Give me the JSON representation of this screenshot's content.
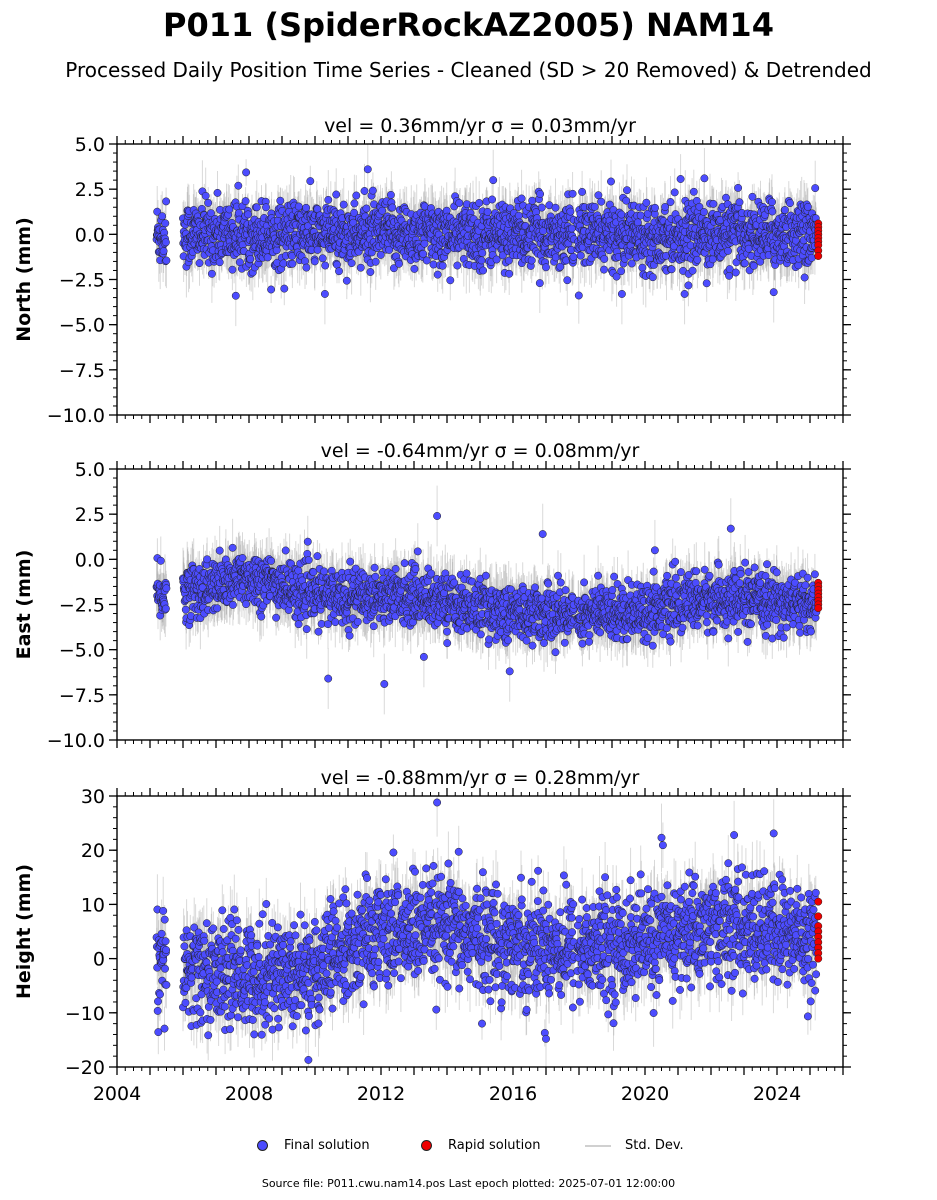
{
  "title": "P011 (SpiderRockAZ2005) NAM14",
  "subtitle": "Processed Daily Position Time Series - Cleaned (SD > 20 Removed) & Detrended",
  "legend": {
    "final": "Final solution",
    "rapid": "Rapid solution",
    "std": "Std. Dev."
  },
  "footer": "Source file: P011.cwu.nam14.pos  Last epoch plotted: 2025-07-01 12:00:00",
  "colors": {
    "final": "#4c4cff",
    "rapid": "#ee0000",
    "std": "#aaaaaa",
    "marker_edge": "#222222"
  },
  "chart_data": [
    {
      "type": "scatter",
      "panel": "north",
      "title": "vel = 0.36mm/yr   σ = 0.03mm/yr",
      "ylabel": "North (mm)",
      "xlabel": "",
      "xlim": [
        2004,
        2026
      ],
      "ylim": [
        -10,
        5
      ],
      "yticks": [
        5.0,
        2.5,
        0.0,
        -2.5,
        -5.0,
        -7.5,
        -10.0
      ],
      "ytick_labels": [
        "5.0",
        "2.5",
        "0.0",
        "−2.5",
        "−5.0",
        "−7.5",
        "−10.0"
      ],
      "xticks": [
        2004,
        2008,
        2012,
        2016,
        2020,
        2024
      ],
      "show_xtick_labels": false,
      "final_series": {
        "name": "Final solution",
        "data_ranges": [
          [
            2005.2,
            2005.5
          ],
          [
            2006.0,
            2017.85
          ],
          [
            2017.95,
            2025.2
          ]
        ],
        "baseline": 0.0,
        "scatter_sd": 0.9,
        "std_dev_mean": 1.2
      },
      "rapid_series": {
        "name": "Rapid solution",
        "x": 2025.25,
        "values": [
          0.6,
          0.4,
          0.2,
          0.0,
          -0.2,
          -0.4,
          -0.6,
          -0.9,
          -1.2
        ]
      },
      "outliers": [
        {
          "x": 2011.6,
          "y": 3.6
        },
        {
          "x": 2021.8,
          "y": 3.1
        },
        {
          "x": 2015.4,
          "y": 3.0
        },
        {
          "x": 2007.6,
          "y": -3.4
        },
        {
          "x": 2010.3,
          "y": -3.3
        },
        {
          "x": 2021.2,
          "y": -3.3
        },
        {
          "x": 2023.9,
          "y": -3.2
        },
        {
          "x": 2019.3,
          "y": -3.3
        }
      ]
    },
    {
      "type": "scatter",
      "panel": "east",
      "title": "vel = -0.64mm/yr   σ = 0.08mm/yr",
      "ylabel": "East (mm)",
      "xlabel": "",
      "xlim": [
        2004,
        2026
      ],
      "ylim": [
        -10,
        5
      ],
      "yticks": [
        5.0,
        2.5,
        0.0,
        -2.5,
        -5.0,
        -7.5,
        -10.0
      ],
      "ytick_labels": [
        "5.0",
        "2.5",
        "0.0",
        "−2.5",
        "−5.0",
        "−7.5",
        "−10.0"
      ],
      "xticks": [
        2004,
        2008,
        2012,
        2016,
        2020,
        2024
      ],
      "show_xtick_labels": false,
      "final_series": {
        "name": "Final solution",
        "data_ranges": [
          [
            2005.2,
            2005.5
          ],
          [
            2006.0,
            2017.85
          ],
          [
            2017.95,
            2025.2
          ]
        ],
        "baseline_points": [
          [
            2005.2,
            -2.0
          ],
          [
            2007.0,
            -1.5
          ],
          [
            2008.0,
            -1.0
          ],
          [
            2010.0,
            -2.0
          ],
          [
            2013.0,
            -2.0
          ],
          [
            2016.0,
            -3.0
          ],
          [
            2018.0,
            -3.0
          ],
          [
            2020.0,
            -2.8
          ],
          [
            2022.0,
            -2.2
          ],
          [
            2025.2,
            -2.5
          ]
        ],
        "scatter_sd": 0.75,
        "std_dev_mean": 1.2
      },
      "rapid_series": {
        "name": "Rapid solution",
        "x": 2025.25,
        "values": [
          -1.3,
          -1.5,
          -1.7,
          -1.9,
          -2.1,
          -2.3,
          -2.5,
          -2.7
        ]
      },
      "outliers": [
        {
          "x": 2013.7,
          "y": 2.4
        },
        {
          "x": 2022.6,
          "y": 1.7
        },
        {
          "x": 2016.9,
          "y": 1.4
        },
        {
          "x": 2010.4,
          "y": -6.6
        },
        {
          "x": 2012.1,
          "y": -6.9
        },
        {
          "x": 2013.3,
          "y": -5.4
        },
        {
          "x": 2015.9,
          "y": -6.2
        },
        {
          "x": 2020.3,
          "y": 0.5
        }
      ]
    },
    {
      "type": "scatter",
      "panel": "height",
      "title": "vel = -0.88mm/yr   σ = 0.28mm/yr",
      "ylabel": "Height (mm)",
      "xlabel": "",
      "xlim": [
        2004,
        2026
      ],
      "ylim": [
        -20,
        30
      ],
      "yticks": [
        30,
        20,
        10,
        0,
        -10,
        -20
      ],
      "ytick_labels": [
        "30",
        "20",
        "10",
        "0",
        "−10",
        "−20"
      ],
      "xticks": [
        2004,
        2008,
        2012,
        2016,
        2020,
        2024
      ],
      "xtick_labels": [
        "2004",
        "2008",
        "2012",
        "2016",
        "2020",
        "2024"
      ],
      "show_xtick_labels": true,
      "final_series": {
        "name": "Final solution",
        "data_ranges": [
          [
            2005.2,
            2005.5
          ],
          [
            2006.0,
            2017.85
          ],
          [
            2017.95,
            2025.2
          ]
        ],
        "baseline_points": [
          [
            2005.2,
            -2.0
          ],
          [
            2008.0,
            -3.0
          ],
          [
            2010.0,
            -2.0
          ],
          [
            2012.0,
            5.0
          ],
          [
            2014.0,
            5.0
          ],
          [
            2016.0,
            3.0
          ],
          [
            2018.0,
            2.0
          ],
          [
            2020.0,
            3.0
          ],
          [
            2022.0,
            6.0
          ],
          [
            2025.2,
            4.0
          ]
        ],
        "scatter_sd": 4.8,
        "std_dev_mean": 4.5
      },
      "rapid_series": {
        "name": "Rapid solution",
        "x": 2025.25,
        "values": [
          10.5,
          7.8,
          6.0,
          5.0,
          4.0,
          3.0,
          2.0,
          1.0,
          0.0
        ]
      },
      "outliers": [
        {
          "x": 2013.7,
          "y": 28.8
        },
        {
          "x": 2020.5,
          "y": 22.3
        },
        {
          "x": 2023.9,
          "y": 23.1
        },
        {
          "x": 2022.7,
          "y": 22.8
        },
        {
          "x": 2009.8,
          "y": -18.7
        },
        {
          "x": 2017.0,
          "y": -14.8
        },
        {
          "x": 2005.4,
          "y": 8.8
        }
      ]
    }
  ]
}
